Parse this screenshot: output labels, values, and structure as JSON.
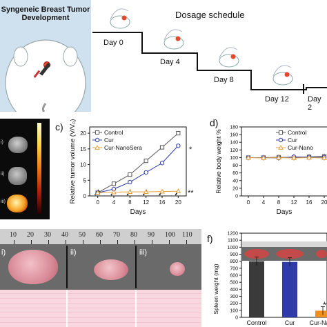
{
  "figure": {
    "panel_a_title": "Syngeneic Breast Tumor\nDevelopment",
    "schedule": {
      "title": "Dosage schedule",
      "days": [
        "Day 0",
        "Day 4",
        "Day 8",
        "Day 12",
        "Day 2"
      ]
    },
    "panel_labels": {
      "c": "c)",
      "d": "d)",
      "f": "f)"
    },
    "roman": [
      "i)",
      "ii)",
      "iii)"
    ],
    "ruler_ticks": [
      "10",
      "20",
      "30",
      "40",
      "50",
      "60",
      "70",
      "80",
      "90",
      "100",
      "110"
    ],
    "imaging_ticks": [
      "i)",
      "ii)",
      "iii)"
    ]
  },
  "chart_data": [
    {
      "type": "line",
      "id": "c",
      "xlabel": "Days",
      "ylabel": "Relative tumor volume (V/V₀)",
      "x": [
        0,
        4,
        8,
        12,
        16,
        20
      ],
      "x_ticks": [
        "0",
        "4",
        "8",
        "12",
        "16",
        "20"
      ],
      "y_ticks": [
        "0",
        "5",
        "10",
        "15",
        "20"
      ],
      "ylim": [
        0,
        22
      ],
      "xlim": [
        -2,
        22
      ],
      "series": [
        {
          "name": "Control",
          "color": "#555555",
          "marker": "square",
          "values": [
            1,
            3.9,
            6.8,
            11.2,
            15.5,
            20
          ]
        },
        {
          "name": "Cur",
          "color": "#2e3ba8",
          "marker": "circle",
          "values": [
            1,
            2.2,
            4.4,
            7.5,
            10.5,
            16
          ]
        },
        {
          "name": "Cur-NanoSera",
          "color": "#e8a23c",
          "marker": "triangle",
          "values": [
            1,
            1.2,
            1.3,
            1.3,
            1.4,
            1.5
          ]
        }
      ],
      "annotations": [
        "*",
        "**"
      ]
    },
    {
      "type": "line",
      "id": "d",
      "xlabel": "Days",
      "ylabel": "Relative body weight %",
      "x": [
        0,
        4,
        8,
        12,
        16,
        20
      ],
      "x_ticks": [
        "0",
        "4",
        "8",
        "12",
        "16",
        "20"
      ],
      "y_ticks": [
        "0",
        "20",
        "40",
        "60",
        "80",
        "100",
        "120",
        "140",
        "160",
        "180"
      ],
      "ylim": [
        0,
        180
      ],
      "series": [
        {
          "name": "Control",
          "color": "#555555",
          "marker": "square",
          "values": [
            100,
            100,
            101,
            100,
            102,
            103
          ]
        },
        {
          "name": "Cur",
          "color": "#2e3ba8",
          "marker": "circle",
          "values": [
            100,
            100,
            99,
            102,
            101,
            101
          ]
        },
        {
          "name": "Cur-NanoSera",
          "color": "#e8a23c",
          "marker": "triangle",
          "values": [
            100,
            99,
            100,
            99,
            100,
            99
          ]
        }
      ],
      "legend": [
        "Control",
        "Cur",
        "Cur-Nano"
      ]
    },
    {
      "type": "bar",
      "id": "f",
      "ylabel": "Spleen weight (mg)",
      "categories": [
        "Control",
        "Cur",
        "Cur-Nano"
      ],
      "values": [
        800,
        790,
        95
      ],
      "colors": [
        "#3a3a3a",
        "#2e3ba8",
        "#f0901e"
      ],
      "y_ticks": [
        "0",
        "100",
        "200",
        "300",
        "400",
        "500",
        "600",
        "700",
        "800",
        "900",
        "1000",
        "1100",
        "1200"
      ],
      "ylim": [
        0,
        1200
      ],
      "annotations": [
        "**"
      ]
    }
  ]
}
